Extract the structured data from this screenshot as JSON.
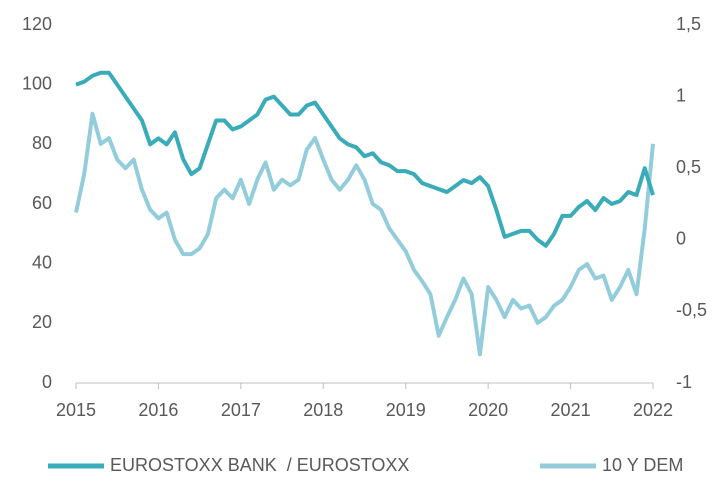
{
  "chart_data": {
    "type": "line",
    "x": [
      2015.0,
      2015.1,
      2015.2,
      2015.3,
      2015.4,
      2015.5,
      2015.6,
      2015.7,
      2015.8,
      2015.9,
      2016.0,
      2016.1,
      2016.2,
      2016.3,
      2016.4,
      2016.5,
      2016.6,
      2016.7,
      2016.8,
      2016.9,
      2017.0,
      2017.1,
      2017.2,
      2017.3,
      2017.4,
      2017.5,
      2017.6,
      2017.7,
      2017.8,
      2017.9,
      2018.0,
      2018.1,
      2018.2,
      2018.3,
      2018.4,
      2018.5,
      2018.6,
      2018.7,
      2018.8,
      2018.9,
      2019.0,
      2019.1,
      2019.2,
      2019.3,
      2019.4,
      2019.5,
      2019.6,
      2019.7,
      2019.8,
      2019.9,
      2020.0,
      2020.1,
      2020.2,
      2020.3,
      2020.4,
      2020.5,
      2020.6,
      2020.7,
      2020.8,
      2020.9,
      2021.0,
      2021.1,
      2021.2,
      2021.3,
      2021.4,
      2021.5,
      2021.6,
      2021.7,
      2021.8,
      2021.9,
      2022.0
    ],
    "series": [
      {
        "name": "EUROSTOXX BANK  / EUROSTOXX",
        "color": "#3aabb8",
        "values": [
          100,
          101,
          103,
          104,
          104,
          100,
          96,
          92,
          88,
          80,
          82,
          80,
          84,
          75,
          70,
          72,
          80,
          88,
          88,
          85,
          86,
          88,
          90,
          95,
          96,
          93,
          90,
          90,
          93,
          94,
          90,
          86,
          82,
          80,
          79,
          76,
          77,
          74,
          73,
          71,
          71,
          70,
          67,
          66,
          65,
          64,
          66,
          68,
          67,
          69,
          66,
          58,
          49,
          50,
          51,
          51,
          48,
          46,
          50,
          56,
          56,
          59,
          61,
          58,
          62,
          60,
          61,
          64,
          63,
          72,
          63
        ]
      },
      {
        "name": "10 Y DEM",
        "color": "#93cddb",
        "axis": "y2",
        "values": [
          0.19,
          0.46,
          0.88,
          0.67,
          0.71,
          0.56,
          0.5,
          0.56,
          0.35,
          0.21,
          0.15,
          0.19,
          0.0,
          -0.1,
          -0.1,
          -0.06,
          0.04,
          0.29,
          0.35,
          0.29,
          0.42,
          0.25,
          0.42,
          0.54,
          0.35,
          0.42,
          0.38,
          0.42,
          0.63,
          0.71,
          0.56,
          0.42,
          0.35,
          0.42,
          0.52,
          0.42,
          0.25,
          0.21,
          0.08,
          0.0,
          -0.08,
          -0.21,
          -0.29,
          -0.38,
          -0.67,
          -0.54,
          -0.42,
          -0.27,
          -0.38,
          -0.8,
          -0.33,
          -0.42,
          -0.54,
          -0.42,
          -0.48,
          -0.46,
          -0.58,
          -0.54,
          -0.46,
          -0.42,
          -0.33,
          -0.21,
          -0.17,
          -0.27,
          -0.25,
          -0.42,
          -0.33,
          -0.21,
          -0.38,
          0.08,
          0.67
        ]
      }
    ],
    "xlim": [
      2015,
      2022
    ],
    "xticks": [
      2015,
      2016,
      2017,
      2018,
      2019,
      2020,
      2021,
      2022
    ],
    "ylim": [
      0,
      120
    ],
    "yticks": [
      0,
      20,
      40,
      60,
      80,
      100,
      120
    ],
    "y2lim": [
      -1,
      1.5
    ],
    "y2ticks": [
      -1,
      {
        "value": -0.5,
        "label": "-0,5"
      },
      0,
      {
        "value": 0.5,
        "label": "0,5"
      },
      1,
      {
        "value": 1.5,
        "label": "1,5"
      }
    ],
    "grid": false
  }
}
